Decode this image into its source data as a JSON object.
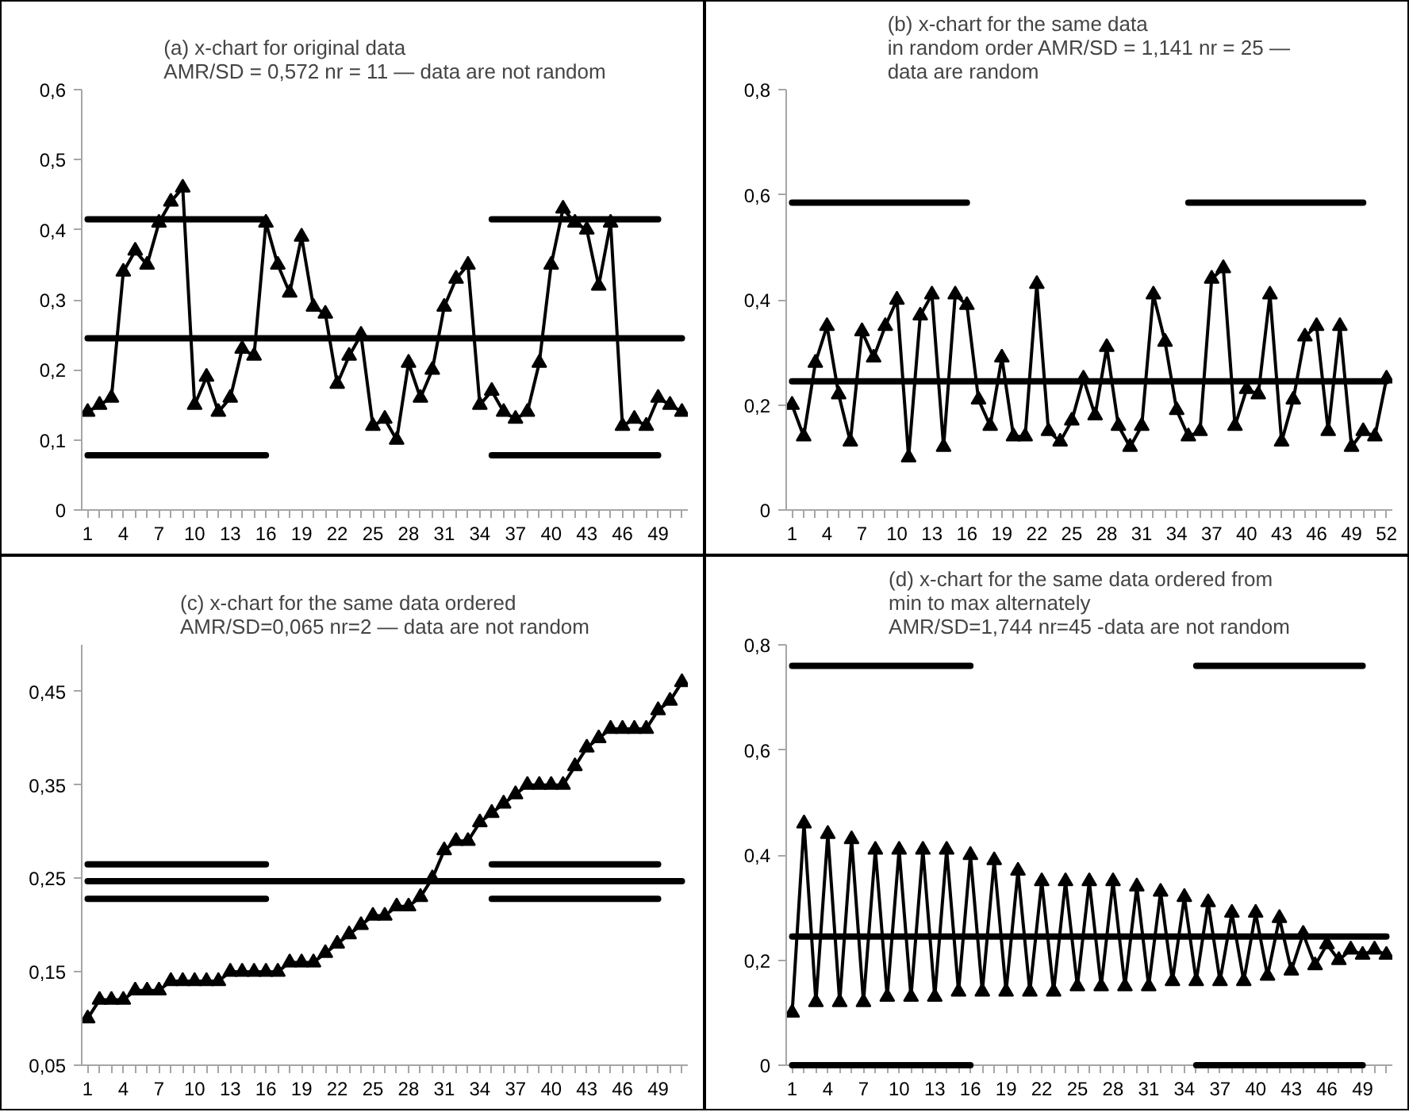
{
  "chart_data": [
    {
      "type": "line",
      "title": "(a) x-chart for original data\nAMR/SD = 0,572 nr = 11 — data are not random",
      "categories": [
        "1",
        null,
        null,
        "4",
        null,
        null,
        "7",
        null,
        null,
        "10",
        null,
        null,
        "13",
        null,
        null,
        "16",
        null,
        null,
        "19",
        null,
        null,
        "22",
        null,
        null,
        "25",
        null,
        null,
        "28",
        null,
        null,
        "31",
        null,
        null,
        "34",
        null,
        null,
        "37",
        null,
        null,
        "40",
        null,
        null,
        "43",
        null,
        null,
        "46",
        null,
        null,
        "49",
        null,
        null
      ],
      "ylim": [
        0,
        0.6
      ],
      "yticks": [
        0,
        {
          "value": 0.1,
          "label": "0,1"
        },
        {
          "value": 0.2,
          "label": "0,2"
        },
        {
          "value": 0.3,
          "label": "0,3"
        },
        {
          "value": 0.4,
          "label": "0,4"
        },
        {
          "value": 0.5,
          "label": "0,5"
        },
        {
          "value": 0.6,
          "label": "0,6"
        }
      ],
      "grid": false,
      "series": [
        {
          "color": "#000000",
          "marker": "triangle",
          "values": [
            0.14,
            0.15,
            0.16,
            0.34,
            0.37,
            0.35,
            0.41,
            0.44,
            0.46,
            0.15,
            0.19,
            0.14,
            0.16,
            0.23,
            0.22,
            0.41,
            0.35,
            0.31,
            0.39,
            0.29,
            0.28,
            0.18,
            0.22,
            0.25,
            0.12,
            0.13,
            0.1,
            0.21,
            0.16,
            0.2,
            0.29,
            0.33,
            0.35,
            0.15,
            0.17,
            0.14,
            0.13,
            0.14,
            0.21,
            0.35,
            0.43,
            0.41,
            0.4,
            0.32,
            0.41,
            0.12,
            0.13,
            0.12,
            0.16,
            0.15,
            0.14
          ]
        },
        {
          "color": "#000000",
          "marker": "none",
          "values": [
            0.415,
            0.415,
            0.415,
            0.415,
            0.415,
            0.415,
            0.415,
            0.415,
            0.415,
            0.415,
            0.415,
            0.415,
            0.415,
            0.415,
            0.415,
            0.415,
            null,
            null,
            null,
            null,
            null,
            null,
            null,
            null,
            null,
            null,
            null,
            null,
            null,
            null,
            null,
            null,
            null,
            null,
            0.415,
            0.415,
            0.415,
            0.415,
            0.415,
            0.415,
            0.415,
            0.415,
            0.415,
            0.415,
            0.415,
            0.415,
            0.415,
            0.415,
            0.415,
            null,
            null
          ]
        },
        {
          "color": "#000000",
          "marker": "none",
          "values": [
            0.245,
            0.245,
            0.245,
            0.245,
            0.245,
            0.245,
            0.245,
            0.245,
            0.245,
            0.245,
            0.245,
            0.245,
            0.245,
            0.245,
            0.245,
            0.245,
            0.245,
            0.245,
            0.245,
            0.245,
            0.245,
            0.245,
            0.245,
            0.245,
            0.245,
            0.245,
            0.245,
            0.245,
            0.245,
            0.245,
            0.245,
            0.245,
            0.245,
            0.245,
            0.245,
            0.245,
            0.245,
            0.245,
            0.245,
            0.245,
            0.245,
            0.245,
            0.245,
            0.245,
            0.245,
            0.245,
            0.245,
            0.245,
            0.245,
            0.245,
            0.245
          ]
        },
        {
          "color": "#000000",
          "marker": "none",
          "values": [
            0.078,
            0.078,
            0.078,
            0.078,
            0.078,
            0.078,
            0.078,
            0.078,
            0.078,
            0.078,
            0.078,
            0.078,
            0.078,
            0.078,
            0.078,
            0.078,
            null,
            null,
            null,
            null,
            null,
            null,
            null,
            null,
            null,
            null,
            null,
            null,
            null,
            null,
            null,
            null,
            null,
            null,
            0.078,
            0.078,
            0.078,
            0.078,
            0.078,
            0.078,
            0.078,
            0.078,
            0.078,
            0.078,
            0.078,
            0.078,
            0.078,
            0.078,
            0.078,
            null,
            null
          ]
        }
      ]
    },
    {
      "type": "line",
      "title": "(b) x-chart for the same data\nin random order AMR/SD = 1,141 nr = 25 —\ndata are random",
      "categories": [
        "1",
        null,
        null,
        "4",
        null,
        null,
        "7",
        null,
        null,
        "10",
        null,
        null,
        "13",
        null,
        null,
        "16",
        null,
        null,
        "19",
        null,
        null,
        "22",
        null,
        null,
        "25",
        null,
        null,
        "28",
        null,
        null,
        "31",
        null,
        null,
        "34",
        null,
        null,
        "37",
        null,
        null,
        "40",
        null,
        null,
        "43",
        null,
        null,
        "46",
        null,
        null,
        "49",
        null,
        null,
        "52"
      ],
      "ylim": [
        0,
        0.8
      ],
      "yticks": [
        0,
        {
          "value": 0.2,
          "label": "0,2"
        },
        {
          "value": 0.4,
          "label": "0,4"
        },
        {
          "value": 0.6,
          "label": "0,6"
        },
        {
          "value": 0.8,
          "label": "0,8"
        }
      ],
      "grid": false,
      "series": [
        {
          "color": "#000000",
          "marker": "triangle",
          "values": [
            0.2,
            0.14,
            0.28,
            0.35,
            0.22,
            0.13,
            0.34,
            0.29,
            0.35,
            0.4,
            0.1,
            0.37,
            0.41,
            0.12,
            0.41,
            0.39,
            0.21,
            0.16,
            0.29,
            0.14,
            0.14,
            0.43,
            0.15,
            0.13,
            0.17,
            0.25,
            0.18,
            0.31,
            0.16,
            0.12,
            0.16,
            0.41,
            0.32,
            0.19,
            0.14,
            0.15,
            0.44,
            0.46,
            0.16,
            0.23,
            0.22,
            0.41,
            0.13,
            0.21,
            0.33,
            0.35,
            0.15,
            0.35,
            0.12,
            0.15,
            0.14,
            0.25
          ]
        },
        {
          "color": "#000000",
          "marker": "none",
          "values": [
            0.585,
            0.585,
            0.585,
            0.585,
            0.585,
            0.585,
            0.585,
            0.585,
            0.585,
            0.585,
            0.585,
            0.585,
            0.585,
            0.585,
            0.585,
            0.585,
            null,
            null,
            null,
            null,
            null,
            null,
            null,
            null,
            null,
            null,
            null,
            null,
            null,
            null,
            null,
            null,
            null,
            null,
            0.585,
            0.585,
            0.585,
            0.585,
            0.585,
            0.585,
            0.585,
            0.585,
            0.585,
            0.585,
            0.585,
            0.585,
            0.585,
            0.585,
            0.585,
            0.585,
            null,
            null
          ]
        },
        {
          "color": "#000000",
          "marker": "none",
          "values": [
            0.245,
            0.245,
            0.245,
            0.245,
            0.245,
            0.245,
            0.245,
            0.245,
            0.245,
            0.245,
            0.245,
            0.245,
            0.245,
            0.245,
            0.245,
            0.245,
            0.245,
            0.245,
            0.245,
            0.245,
            0.245,
            0.245,
            0.245,
            0.245,
            0.245,
            0.245,
            0.245,
            0.245,
            0.245,
            0.245,
            0.245,
            0.245,
            0.245,
            0.245,
            0.245,
            0.245,
            0.245,
            0.245,
            0.245,
            0.245,
            0.245,
            0.245,
            0.245,
            0.245,
            0.245,
            0.245,
            0.245,
            0.245,
            0.245,
            0.245,
            0.245,
            0.245
          ]
        }
      ]
    },
    {
      "type": "line",
      "title": "(c) x-chart for the same data ordered\nAMR/SD=0,065 nr=2 — data are not random",
      "categories": [
        "1",
        null,
        null,
        "4",
        null,
        null,
        "7",
        null,
        null,
        "10",
        null,
        null,
        "13",
        null,
        null,
        "16",
        null,
        null,
        "19",
        null,
        null,
        "22",
        null,
        null,
        "25",
        null,
        null,
        "28",
        null,
        null,
        "31",
        null,
        null,
        "34",
        null,
        null,
        "37",
        null,
        null,
        "40",
        null,
        null,
        "43",
        null,
        null,
        "46",
        null,
        null,
        "49",
        null,
        null
      ],
      "ylim": [
        0.05,
        0.5
      ],
      "yticks": [
        {
          "value": 0.05,
          "label": "0,05"
        },
        {
          "value": 0.15,
          "label": "0,15"
        },
        {
          "value": 0.25,
          "label": "0,25"
        },
        {
          "value": 0.35,
          "label": "0,35"
        },
        {
          "value": 0.45,
          "label": "0,45"
        }
      ],
      "grid": false,
      "series": [
        {
          "color": "#000000",
          "marker": "triangle",
          "values": [
            0.1,
            0.12,
            0.12,
            0.12,
            0.13,
            0.13,
            0.13,
            0.14,
            0.14,
            0.14,
            0.14,
            0.14,
            0.15,
            0.15,
            0.15,
            0.15,
            0.15,
            0.16,
            0.16,
            0.16,
            0.17,
            0.18,
            0.19,
            0.2,
            0.21,
            0.21,
            0.22,
            0.22,
            0.23,
            0.25,
            0.28,
            0.29,
            0.29,
            0.31,
            0.32,
            0.33,
            0.34,
            0.35,
            0.35,
            0.35,
            0.35,
            0.37,
            0.39,
            0.4,
            0.41,
            0.41,
            0.41,
            0.41,
            0.43,
            0.44,
            0.46
          ]
        },
        {
          "color": "#000000",
          "marker": "none",
          "values": [
            0.265,
            0.265,
            0.265,
            0.265,
            0.265,
            0.265,
            0.265,
            0.265,
            0.265,
            0.265,
            0.265,
            0.265,
            0.265,
            0.265,
            0.265,
            0.265,
            null,
            null,
            null,
            null,
            null,
            null,
            null,
            null,
            null,
            null,
            null,
            null,
            null,
            null,
            null,
            null,
            null,
            null,
            0.265,
            0.265,
            0.265,
            0.265,
            0.265,
            0.265,
            0.265,
            0.265,
            0.265,
            0.265,
            0.265,
            0.265,
            0.265,
            0.265,
            0.265,
            null,
            null
          ]
        },
        {
          "color": "#000000",
          "marker": "none",
          "values": [
            0.247,
            0.247,
            0.247,
            0.247,
            0.247,
            0.247,
            0.247,
            0.247,
            0.247,
            0.247,
            0.247,
            0.247,
            0.247,
            0.247,
            0.247,
            0.247,
            0.247,
            0.247,
            0.247,
            0.247,
            0.247,
            0.247,
            0.247,
            0.247,
            0.247,
            0.247,
            0.247,
            0.247,
            0.247,
            0.247,
            0.247,
            0.247,
            0.247,
            0.247,
            0.247,
            0.247,
            0.247,
            0.247,
            0.247,
            0.247,
            0.247,
            0.247,
            0.247,
            0.247,
            0.247,
            0.247,
            0.247,
            0.247,
            0.247,
            0.247,
            0.247
          ]
        },
        {
          "color": "#000000",
          "marker": "none",
          "values": [
            0.228,
            0.228,
            0.228,
            0.228,
            0.228,
            0.228,
            0.228,
            0.228,
            0.228,
            0.228,
            0.228,
            0.228,
            0.228,
            0.228,
            0.228,
            0.228,
            null,
            null,
            null,
            null,
            null,
            null,
            null,
            null,
            null,
            null,
            null,
            null,
            null,
            null,
            null,
            null,
            null,
            null,
            0.228,
            0.228,
            0.228,
            0.228,
            0.228,
            0.228,
            0.228,
            0.228,
            0.228,
            0.228,
            0.228,
            0.228,
            0.228,
            0.228,
            0.228,
            null,
            null
          ]
        }
      ]
    },
    {
      "type": "line",
      "title": "(d) x-chart for the same data ordered from\nmin to max alternately\nAMR/SD=1,744 nr=45 -data are not random",
      "categories": [
        "1",
        null,
        null,
        "4",
        null,
        null,
        "7",
        null,
        null,
        "10",
        null,
        null,
        "13",
        null,
        null,
        "16",
        null,
        null,
        "19",
        null,
        null,
        "22",
        null,
        null,
        "25",
        null,
        null,
        "28",
        null,
        null,
        "31",
        null,
        null,
        "34",
        null,
        null,
        "37",
        null,
        null,
        "40",
        null,
        null,
        "43",
        null,
        null,
        "46",
        null,
        null,
        "49",
        null,
        null
      ],
      "ylim": [
        0,
        0.8
      ],
      "yticks": [
        0,
        {
          "value": 0.2,
          "label": "0,2"
        },
        {
          "value": 0.4,
          "label": "0,4"
        },
        {
          "value": 0.6,
          "label": "0,6"
        },
        {
          "value": 0.8,
          "label": "0,8"
        }
      ],
      "grid": false,
      "series": [
        {
          "color": "#000000",
          "marker": "triangle",
          "values": [
            0.1,
            0.46,
            0.12,
            0.44,
            0.12,
            0.43,
            0.12,
            0.41,
            0.13,
            0.41,
            0.13,
            0.41,
            0.13,
            0.41,
            0.14,
            0.4,
            0.14,
            0.39,
            0.14,
            0.37,
            0.14,
            0.35,
            0.14,
            0.35,
            0.15,
            0.35,
            0.15,
            0.35,
            0.15,
            0.34,
            0.15,
            0.33,
            0.16,
            0.32,
            0.16,
            0.31,
            0.16,
            0.29,
            0.16,
            0.29,
            0.17,
            0.28,
            0.18,
            0.25,
            0.19,
            0.23,
            0.2,
            0.22,
            0.21,
            0.22,
            0.21
          ]
        },
        {
          "color": "#000000",
          "marker": "none",
          "values": [
            0.76,
            0.76,
            0.76,
            0.76,
            0.76,
            0.76,
            0.76,
            0.76,
            0.76,
            0.76,
            0.76,
            0.76,
            0.76,
            0.76,
            0.76,
            0.76,
            null,
            null,
            null,
            null,
            null,
            null,
            null,
            null,
            null,
            null,
            null,
            null,
            null,
            null,
            null,
            null,
            null,
            null,
            0.76,
            0.76,
            0.76,
            0.76,
            0.76,
            0.76,
            0.76,
            0.76,
            0.76,
            0.76,
            0.76,
            0.76,
            0.76,
            0.76,
            0.76,
            null,
            null
          ]
        },
        {
          "color": "#000000",
          "marker": "none",
          "values": [
            0.245,
            0.245,
            0.245,
            0.245,
            0.245,
            0.245,
            0.245,
            0.245,
            0.245,
            0.245,
            0.245,
            0.245,
            0.245,
            0.245,
            0.245,
            0.245,
            0.245,
            0.245,
            0.245,
            0.245,
            0.245,
            0.245,
            0.245,
            0.245,
            0.245,
            0.245,
            0.245,
            0.245,
            0.245,
            0.245,
            0.245,
            0.245,
            0.245,
            0.245,
            0.245,
            0.245,
            0.245,
            0.245,
            0.245,
            0.245,
            0.245,
            0.245,
            0.245,
            0.245,
            0.245,
            0.245,
            0.245,
            0.245,
            0.245,
            0.245,
            0.245
          ]
        },
        {
          "color": "#000000",
          "marker": "none",
          "values": [
            0,
            0,
            0,
            0,
            0,
            0,
            0,
            0,
            0,
            0,
            0,
            0,
            0,
            0,
            0,
            0,
            null,
            null,
            null,
            null,
            null,
            null,
            null,
            null,
            null,
            null,
            null,
            null,
            null,
            null,
            null,
            null,
            null,
            null,
            0,
            0,
            0,
            0,
            0,
            0,
            0,
            0,
            0,
            0,
            0,
            0,
            0,
            0,
            0,
            null,
            null
          ]
        }
      ]
    }
  ]
}
